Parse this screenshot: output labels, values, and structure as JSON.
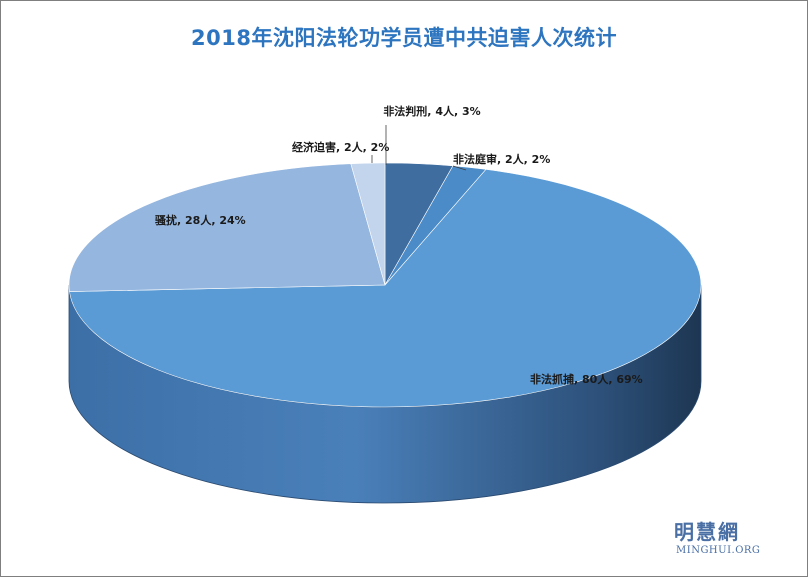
{
  "chart_data": {
    "type": "pie",
    "title": "2018年沈阳法轮功学员遭中共迫害人次统计",
    "slices": [
      {
        "category": "非法判刑",
        "label": "非法判刑, 4人, 3%",
        "value": 4,
        "percent": 3,
        "color": "#3f6da0"
      },
      {
        "category": "非法庭审",
        "label": "非法庭审, 2人, 2%",
        "value": 2,
        "percent": 2,
        "color": "#4a8bc8"
      },
      {
        "category": "非法抓捕",
        "label": "非法抓捕, 80人, 69%",
        "value": 80,
        "percent": 69,
        "color": "#5b9bd5"
      },
      {
        "category": "骚扰",
        "label": "骚扰, 28人, 24%",
        "value": 28,
        "percent": 24,
        "color": "#95b6df"
      },
      {
        "category": "经济迫害",
        "label": "经济迫害, 2人, 2%",
        "value": 2,
        "percent": 2,
        "color": "#c3d5ec"
      }
    ],
    "legend": "none",
    "style": "3d"
  },
  "watermark": {
    "name_cn": "明慧網",
    "name_en": "MINGHUI.ORG"
  }
}
